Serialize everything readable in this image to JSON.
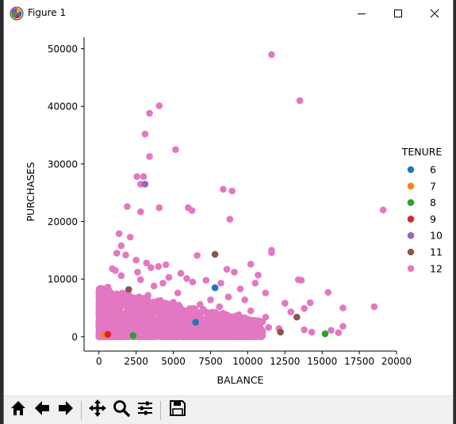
{
  "window": {
    "title": "Figure 1",
    "icons": {
      "app": "matplotlib-icon",
      "minimize": "minimize-icon",
      "maximize": "maximize-icon",
      "close": "close-icon"
    }
  },
  "toolbar": {
    "buttons": [
      {
        "name": "home-icon"
      },
      {
        "name": "back-arrow-icon"
      },
      {
        "name": "forward-arrow-icon"
      },
      {
        "name": "pan-move-icon"
      },
      {
        "name": "zoom-magnifier-icon"
      },
      {
        "name": "configure-subplots-icon"
      },
      {
        "name": "save-floppy-icon"
      }
    ]
  },
  "chart_data": {
    "type": "scatter",
    "title": "",
    "xlabel": "BALANCE",
    "ylabel": "PURCHASES",
    "xlim": [
      -1000,
      20000
    ],
    "ylim": [
      -2500,
      52000
    ],
    "xticks": [
      0,
      2500,
      5000,
      7500,
      10000,
      12500,
      15000,
      17500,
      20000
    ],
    "xtick_labels": [
      "0",
      "2500",
      "5000",
      "7500",
      "10000",
      "12500",
      "15000",
      "17500",
      "20000"
    ],
    "yticks": [
      0,
      10000,
      20000,
      30000,
      40000,
      50000
    ],
    "ytick_labels": [
      "0",
      "10000",
      "20000",
      "30000",
      "40000",
      "50000"
    ],
    "grid": false,
    "legend_title": "TENURE",
    "legend_position": "right",
    "series": [
      {
        "name": "6",
        "color": "#1f77b4",
        "points": [
          [
            7800,
            8500
          ],
          [
            6500,
            2500
          ]
        ]
      },
      {
        "name": "7",
        "color": "#ff7f0e",
        "points": [
          [
            400,
            300
          ]
        ]
      },
      {
        "name": "8",
        "color": "#2ca02c",
        "points": [
          [
            15200,
            500
          ],
          [
            2300,
            200
          ]
        ]
      },
      {
        "name": "9",
        "color": "#d62728",
        "points": [
          [
            600,
            400
          ]
        ]
      },
      {
        "name": "10",
        "color": "#9467bd",
        "points": [
          [
            3100,
            26500
          ]
        ]
      },
      {
        "name": "11",
        "color": "#8c564b",
        "points": [
          [
            7800,
            14300
          ],
          [
            13300,
            3400
          ],
          [
            2000,
            8200
          ],
          [
            12200,
            800
          ]
        ]
      },
      {
        "name": "12",
        "color": "#e377c2",
        "points": [
          [
            11600,
            49000
          ],
          [
            13500,
            41000
          ],
          [
            4050,
            40100
          ],
          [
            3400,
            38800
          ],
          [
            3100,
            35200
          ],
          [
            5150,
            32500
          ],
          [
            3400,
            31300
          ],
          [
            2550,
            27800
          ],
          [
            3000,
            27800
          ],
          [
            2800,
            26500
          ],
          [
            8350,
            25600
          ],
          [
            8950,
            25300
          ],
          [
            1900,
            22600
          ],
          [
            4050,
            22400
          ],
          [
            6000,
            22400
          ],
          [
            19100,
            22000
          ],
          [
            2800,
            21700
          ],
          [
            6250,
            21900
          ],
          [
            8800,
            20400
          ],
          [
            1350,
            17900
          ],
          [
            2100,
            17300
          ],
          [
            1500,
            15800
          ],
          [
            11600,
            15000
          ],
          [
            11600,
            14600
          ],
          [
            1200,
            14500
          ],
          [
            1800,
            14200
          ],
          [
            3500,
            12000
          ],
          [
            10200,
            12600
          ],
          [
            8600,
            11700
          ],
          [
            9100,
            11200
          ],
          [
            10700,
            10700
          ],
          [
            13600,
            9800
          ],
          [
            13400,
            9900
          ],
          [
            15400,
            7700
          ],
          [
            14200,
            5900
          ],
          [
            16400,
            5000
          ],
          [
            18500,
            5200
          ],
          [
            16400,
            1800
          ],
          [
            15600,
            1100
          ],
          [
            16100,
            700
          ],
          [
            13800,
            4900
          ],
          [
            12500,
            5800
          ],
          [
            12900,
            4300
          ],
          [
            11200,
            7600
          ],
          [
            10500,
            9300
          ],
          [
            9500,
            8300
          ],
          [
            6600,
            14100
          ],
          [
            7200,
            9800
          ],
          [
            6300,
            9500
          ],
          [
            4000,
            12200
          ],
          [
            4500,
            12500
          ],
          [
            5500,
            11000
          ],
          [
            2500,
            13300
          ],
          [
            3200,
            12800
          ],
          [
            900,
            11800
          ],
          [
            1100,
            11500
          ],
          [
            2600,
            11200
          ],
          [
            4700,
            10300
          ],
          [
            5900,
            10100
          ],
          [
            8200,
            9300
          ],
          [
            9800,
            6400
          ],
          [
            8700,
            6900
          ],
          [
            10200,
            4500
          ],
          [
            11200,
            3400
          ],
          [
            10800,
            2400
          ],
          [
            12100,
            1400
          ],
          [
            13800,
            1200
          ],
          [
            14300,
            800
          ],
          [
            11400,
            1600
          ],
          [
            9700,
            1900
          ],
          [
            8500,
            2600
          ],
          [
            7300,
            4200
          ],
          [
            6800,
            5600
          ],
          [
            5300,
            7600
          ],
          [
            3700,
            8800
          ],
          [
            2800,
            9900
          ],
          [
            1500,
            10600
          ],
          [
            600,
            8600
          ],
          [
            300,
            5200
          ],
          [
            800,
            2200
          ],
          [
            1600,
            3700
          ],
          [
            2500,
            4600
          ],
          [
            3600,
            5300
          ],
          [
            4600,
            3600
          ],
          [
            5600,
            2400
          ],
          [
            6700,
            1500
          ],
          [
            7600,
            800
          ],
          [
            4200,
            700
          ],
          [
            3100,
            1200
          ],
          [
            2100,
            1800
          ],
          [
            1300,
            900
          ],
          [
            200,
            400
          ],
          [
            5000,
            6000
          ],
          [
            6000,
            4600
          ],
          [
            7000,
            3000
          ],
          [
            8000,
            1800
          ],
          [
            9000,
            1200
          ],
          [
            10000,
            600
          ],
          [
            11000,
            300
          ],
          [
            9400,
            3800
          ],
          [
            8100,
            5200
          ],
          [
            7500,
            6400
          ],
          [
            4300,
            9300
          ],
          [
            3300,
            7200
          ]
        ]
      }
    ]
  }
}
